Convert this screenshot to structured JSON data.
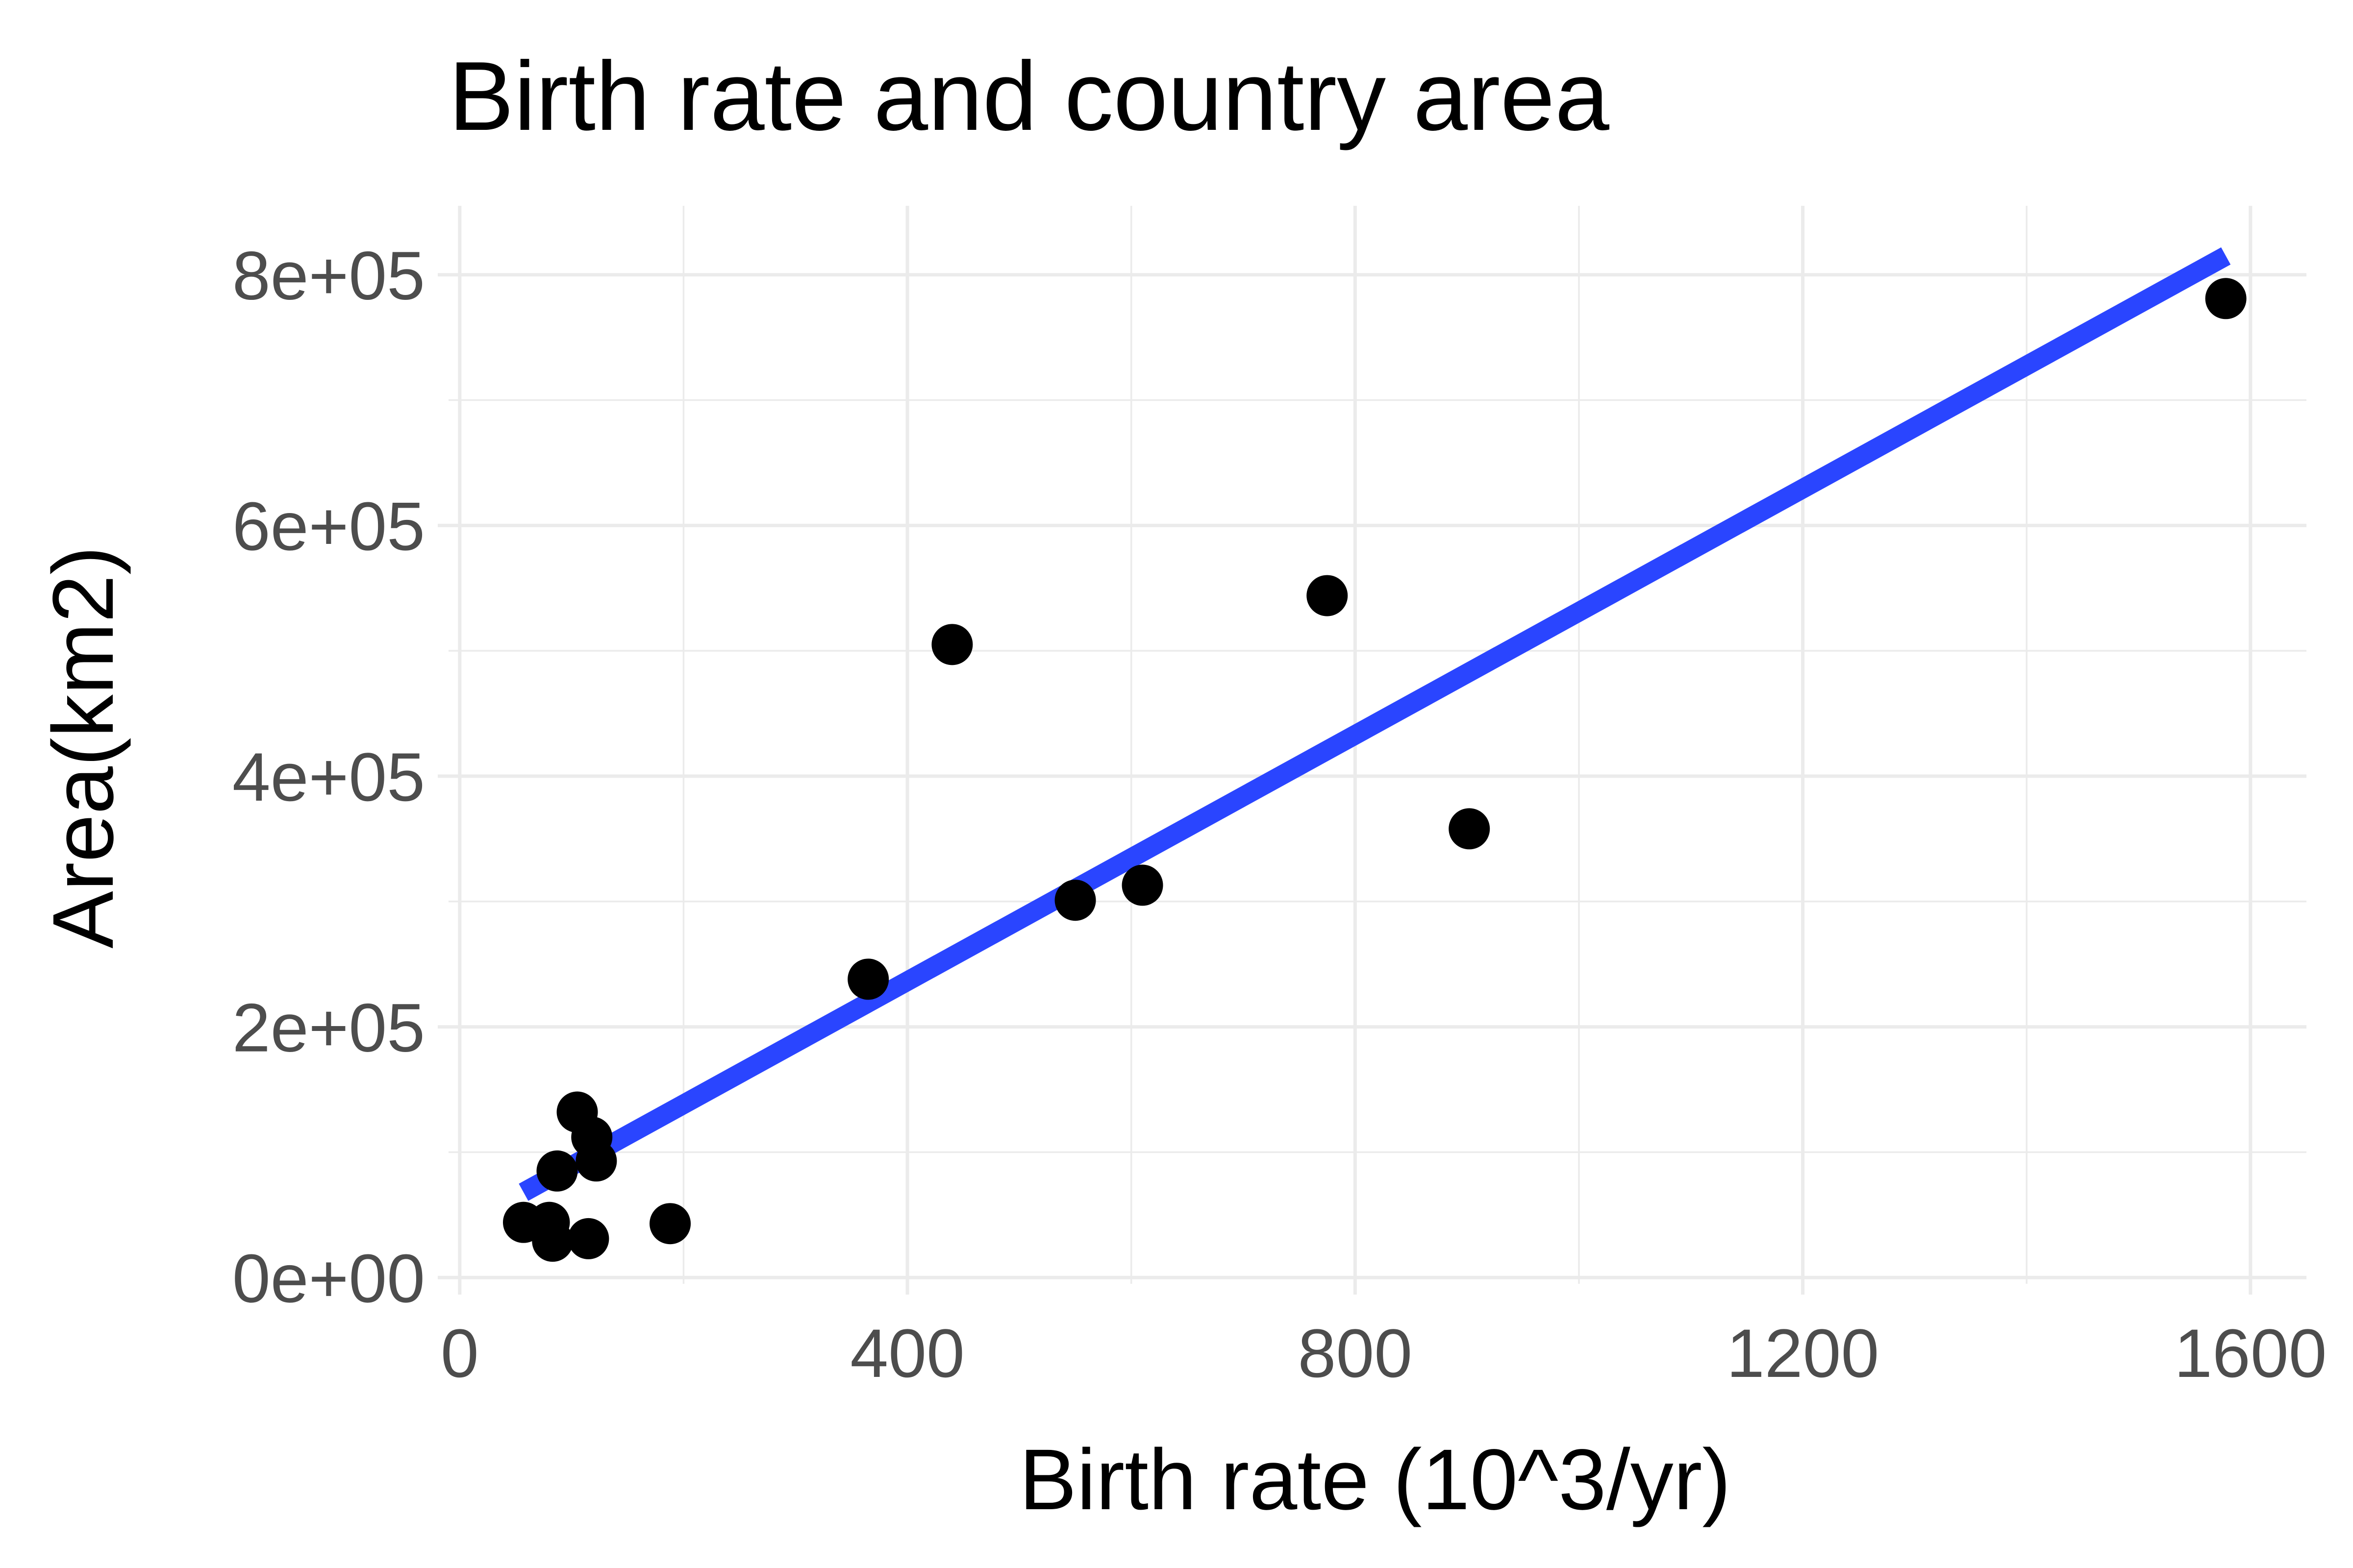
{
  "chart_data": {
    "type": "scatter",
    "title": "Birth rate and country area",
    "xlabel": "Birth rate (10^3/yr)",
    "ylabel": "Area(km2)",
    "xlim": [
      -10,
      1650
    ],
    "ylim": [
      -5000,
      855000
    ],
    "x_ticks": [
      0,
      400,
      800,
      1200,
      1600
    ],
    "x_tick_labels": [
      "0",
      "400",
      "800",
      "1200",
      "1600"
    ],
    "x_minor_ticks": [
      200,
      600,
      1000,
      1400
    ],
    "y_ticks": [
      0,
      200000,
      400000,
      600000,
      800000
    ],
    "y_tick_labels": [
      "0e+00",
      "2e+05",
      "4e+05",
      "6e+05",
      "8e+05"
    ],
    "y_minor_ticks": [
      100000,
      300000,
      500000,
      700000
    ],
    "grid": true,
    "points": [
      {
        "x": 57,
        "y": 44000
      },
      {
        "x": 80,
        "y": 44000
      },
      {
        "x": 83,
        "y": 29000
      },
      {
        "x": 87,
        "y": 85000
      },
      {
        "x": 105,
        "y": 132000
      },
      {
        "x": 115,
        "y": 31000
      },
      {
        "x": 118,
        "y": 112000
      },
      {
        "x": 122,
        "y": 93000
      },
      {
        "x": 188,
        "y": 43000
      },
      {
        "x": 365,
        "y": 238000
      },
      {
        "x": 440,
        "y": 505000
      },
      {
        "x": 550,
        "y": 301000
      },
      {
        "x": 610,
        "y": 313000
      },
      {
        "x": 775,
        "y": 544000
      },
      {
        "x": 902,
        "y": 358000
      },
      {
        "x": 1578,
        "y": 781000
      }
    ],
    "trend_line": {
      "x": [
        57,
        1578
      ],
      "y": [
        68000,
        815000
      ]
    },
    "colors": {
      "points": "#000000",
      "trend_line": "#2a45ff",
      "grid": "#ebebeb",
      "tick_label": "#4d4d4d"
    }
  }
}
